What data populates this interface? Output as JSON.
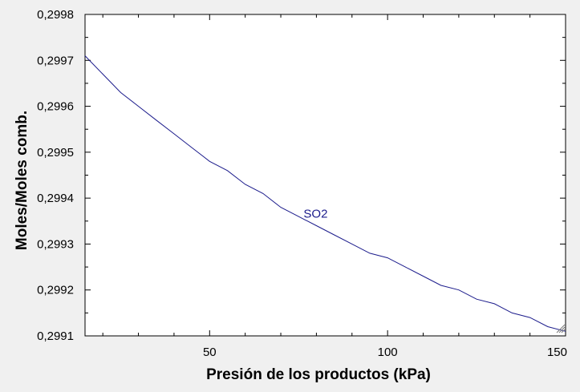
{
  "chart_data": {
    "type": "line",
    "title": "",
    "xlabel": "Presión de los productos  (kPa)",
    "ylabel": "Moles/Moles comb.",
    "xlim": [
      15,
      150
    ],
    "ylim": [
      0.2991,
      0.2998
    ],
    "x_ticks": [
      50,
      100,
      150
    ],
    "x_tick_labels": [
      "50",
      "100",
      "150"
    ],
    "y_ticks": [
      0.2991,
      0.2992,
      0.2993,
      0.2994,
      0.2995,
      0.2996,
      0.2997,
      0.2998
    ],
    "y_tick_labels": [
      "0,2991",
      "0,2992",
      "0,2993",
      "0,2994",
      "0,2995",
      "0,2996",
      "0,2997",
      "0,2998"
    ],
    "grid": false,
    "series": [
      {
        "name": "SO2",
        "color": "#1c1c8c",
        "x": [
          15,
          20,
          25,
          30,
          35,
          40,
          45,
          50,
          55,
          60,
          65,
          70,
          75,
          80,
          85,
          90,
          95,
          100,
          105,
          110,
          115,
          120,
          125,
          130,
          135,
          140,
          145,
          150
        ],
        "y": [
          0.29971,
          0.29967,
          0.29963,
          0.2996,
          0.29957,
          0.29954,
          0.29951,
          0.29948,
          0.29946,
          0.29943,
          0.29941,
          0.29938,
          0.29936,
          0.29934,
          0.29932,
          0.2993,
          0.29928,
          0.29927,
          0.29925,
          0.29923,
          0.29921,
          0.2992,
          0.29918,
          0.29917,
          0.29915,
          0.29914,
          0.29912,
          0.29911
        ]
      }
    ]
  }
}
